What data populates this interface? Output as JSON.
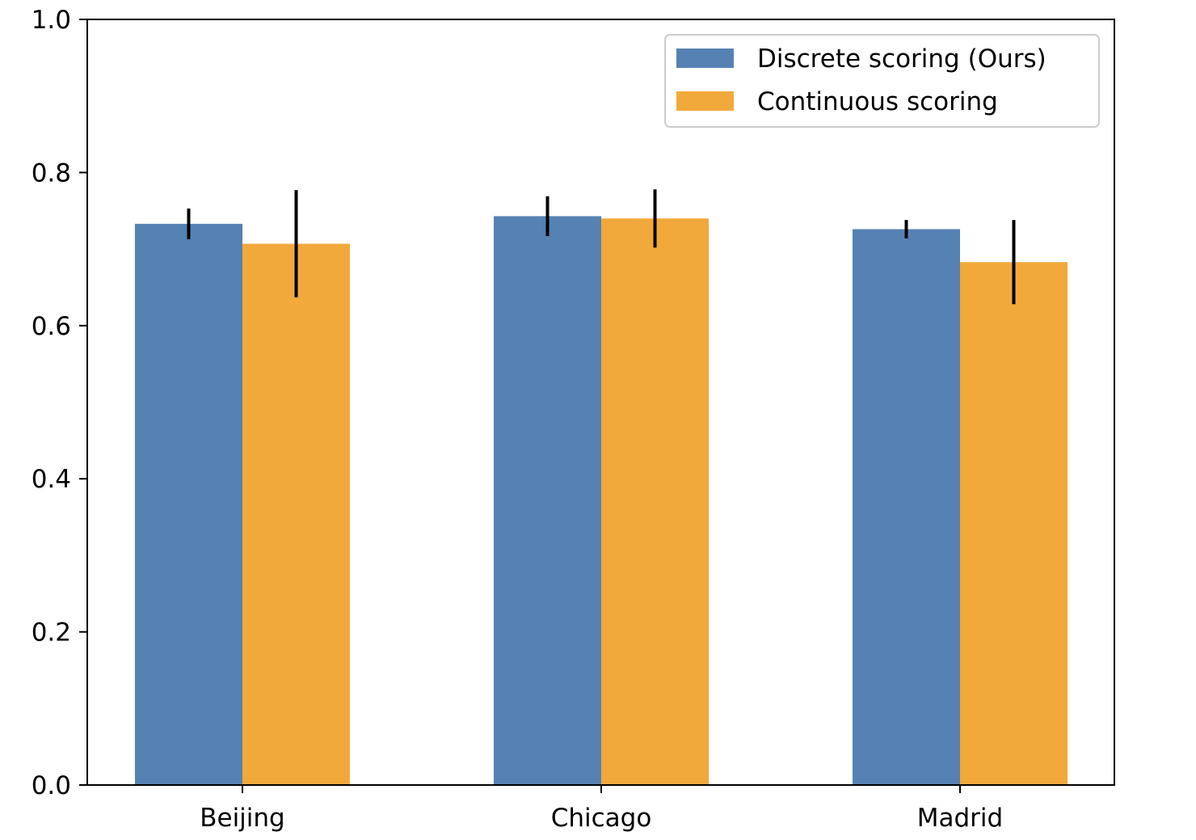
{
  "chart_data": {
    "type": "bar",
    "title": "",
    "xlabel": "",
    "ylabel": "",
    "ylim": [
      0,
      1.0
    ],
    "yticks": [
      "0.0",
      "0.2",
      "0.4",
      "0.6",
      "0.8",
      "1.0"
    ],
    "categories": [
      "Beijing",
      "Chicago",
      "Madrid"
    ],
    "series": [
      {
        "name": "Discrete scoring (Ours)",
        "color": "#5681b3",
        "values": [
          0.733,
          0.743,
          0.726
        ],
        "errors": [
          0.02,
          0.026,
          0.012
        ]
      },
      {
        "name": "Continuous scoring",
        "color": "#f2a93b",
        "values": [
          0.707,
          0.74,
          0.683
        ],
        "errors": [
          0.07,
          0.038,
          0.055
        ]
      }
    ],
    "legend_position": "top-right",
    "grid": false
  }
}
